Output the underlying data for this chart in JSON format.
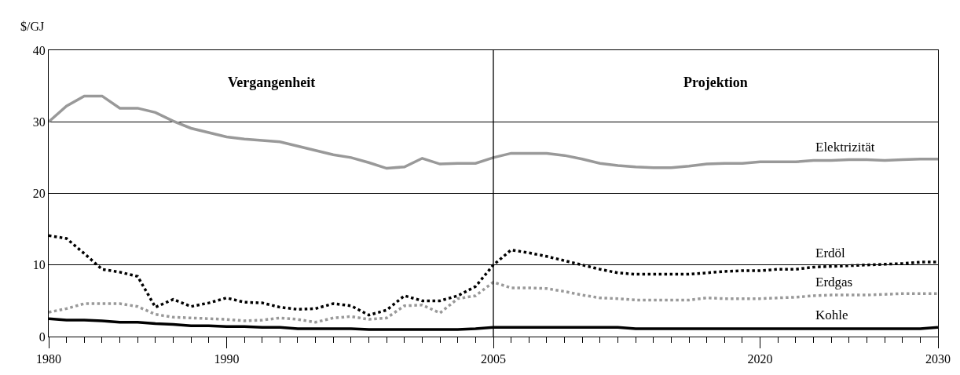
{
  "chart_data": {
    "type": "line",
    "ylabel": "$/GJ",
    "x": [
      1980,
      1981,
      1982,
      1983,
      1984,
      1985,
      1986,
      1987,
      1988,
      1989,
      1990,
      1991,
      1992,
      1993,
      1994,
      1995,
      1996,
      1997,
      1998,
      1999,
      2000,
      2001,
      2002,
      2003,
      2004,
      2005,
      2006,
      2007,
      2008,
      2009,
      2010,
      2011,
      2012,
      2013,
      2014,
      2015,
      2016,
      2017,
      2018,
      2019,
      2020,
      2021,
      2022,
      2023,
      2024,
      2025,
      2026,
      2027,
      2028,
      2029,
      2030
    ],
    "series": [
      {
        "name": "Elektrizität",
        "color": "#999999",
        "line_style": "solid",
        "values": [
          30.0,
          32.2,
          33.6,
          33.6,
          31.9,
          31.9,
          31.3,
          30.1,
          29.1,
          28.5,
          27.9,
          27.6,
          27.4,
          27.2,
          26.6,
          26.0,
          25.4,
          25.0,
          24.3,
          23.5,
          23.7,
          24.9,
          24.1,
          24.2,
          24.2,
          25.0,
          25.6,
          25.6,
          25.6,
          25.3,
          24.8,
          24.2,
          23.9,
          23.7,
          23.6,
          23.6,
          23.8,
          24.1,
          24.2,
          24.2,
          24.4,
          24.4,
          24.4,
          24.6,
          24.6,
          24.7,
          24.7,
          24.6,
          24.7,
          24.8,
          24.8
        ]
      },
      {
        "name": "Erdöl",
        "color": "#000000",
        "line_style": "dotted",
        "values": [
          14.1,
          13.7,
          11.6,
          9.4,
          9.0,
          8.4,
          4.1,
          5.2,
          4.2,
          4.7,
          5.4,
          4.8,
          4.7,
          4.1,
          3.8,
          3.9,
          4.6,
          4.3,
          3.0,
          3.7,
          5.7,
          5.0,
          5.0,
          5.7,
          7.0,
          10.0,
          12.1,
          11.7,
          11.2,
          10.6,
          10.0,
          9.4,
          8.9,
          8.7,
          8.7,
          8.7,
          8.7,
          8.9,
          9.1,
          9.2,
          9.2,
          9.4,
          9.4,
          9.7,
          9.8,
          9.9,
          10.0,
          10.1,
          10.2,
          10.4,
          10.4
        ]
      },
      {
        "name": "Erdgas",
        "color": "#999999",
        "line_style": "dotted",
        "values": [
          3.4,
          3.9,
          4.6,
          4.6,
          4.6,
          4.2,
          3.1,
          2.7,
          2.6,
          2.5,
          2.4,
          2.2,
          2.3,
          2.6,
          2.4,
          2.0,
          2.6,
          2.8,
          2.4,
          2.6,
          4.3,
          4.4,
          3.3,
          5.3,
          5.7,
          7.6,
          6.8,
          6.8,
          6.7,
          6.3,
          5.8,
          5.4,
          5.3,
          5.1,
          5.1,
          5.1,
          5.1,
          5.4,
          5.3,
          5.3,
          5.3,
          5.4,
          5.5,
          5.7,
          5.8,
          5.8,
          5.8,
          5.9,
          6.0,
          6.0,
          6.0
        ]
      },
      {
        "name": "Kohle",
        "color": "#000000",
        "line_style": "solid",
        "values": [
          2.5,
          2.3,
          2.3,
          2.2,
          2.0,
          2.0,
          1.8,
          1.7,
          1.5,
          1.5,
          1.4,
          1.4,
          1.3,
          1.3,
          1.1,
          1.1,
          1.1,
          1.1,
          1.0,
          1.0,
          1.0,
          1.0,
          1.0,
          1.0,
          1.1,
          1.3,
          1.3,
          1.3,
          1.3,
          1.3,
          1.3,
          1.3,
          1.3,
          1.1,
          1.1,
          1.1,
          1.1,
          1.1,
          1.1,
          1.1,
          1.1,
          1.1,
          1.1,
          1.1,
          1.1,
          1.1,
          1.1,
          1.1,
          1.1,
          1.1,
          1.3
        ]
      }
    ],
    "xlim": [
      1980,
      2030
    ],
    "ylim": [
      0,
      40
    ],
    "xticks": [
      1980,
      {
        "value": 1981,
        "label": null
      },
      {
        "value": 1982,
        "label": null
      },
      {
        "value": 1983,
        "label": null
      },
      {
        "value": 1984,
        "label": null
      },
      {
        "value": 1985,
        "label": null
      },
      {
        "value": 1986,
        "label": null
      },
      {
        "value": 1987,
        "label": null
      },
      {
        "value": 1988,
        "label": null
      },
      {
        "value": 1989,
        "label": null
      },
      1990,
      {
        "value": 1991,
        "label": null
      },
      {
        "value": 1992,
        "label": null
      },
      {
        "value": 1993,
        "label": null
      },
      {
        "value": 1994,
        "label": null
      },
      {
        "value": 1995,
        "label": null
      },
      {
        "value": 1996,
        "label": null
      },
      {
        "value": 1997,
        "label": null
      },
      {
        "value": 1998,
        "label": null
      },
      {
        "value": 1999,
        "label": null
      },
      {
        "value": 2000,
        "label": null
      },
      {
        "value": 2001,
        "label": null
      },
      {
        "value": 2002,
        "label": null
      },
      {
        "value": 2003,
        "label": null
      },
      {
        "value": 2004,
        "label": null
      },
      2005,
      {
        "value": 2006,
        "label": null
      },
      {
        "value": 2007,
        "label": null
      },
      {
        "value": 2008,
        "label": null
      },
      {
        "value": 2009,
        "label": null
      },
      {
        "value": 2010,
        "label": null
      },
      {
        "value": 2011,
        "label": null
      },
      {
        "value": 2012,
        "label": null
      },
      {
        "value": 2013,
        "label": null
      },
      {
        "value": 2014,
        "label": null
      },
      {
        "value": 2015,
        "label": null
      },
      {
        "value": 2016,
        "label": null
      },
      {
        "value": 2017,
        "label": null
      },
      {
        "value": 2018,
        "label": null
      },
      {
        "value": 2019,
        "label": null
      },
      2020,
      {
        "value": 2021,
        "label": null
      },
      {
        "value": 2022,
        "label": null
      },
      {
        "value": 2023,
        "label": null
      },
      {
        "value": 2024,
        "label": null
      },
      {
        "value": 2025,
        "label": null
      },
      {
        "value": 2026,
        "label": null
      },
      {
        "value": 2027,
        "label": null
      },
      {
        "value": 2028,
        "label": null
      },
      {
        "value": 2029,
        "label": null
      },
      2030
    ],
    "yticks": [
      0,
      10,
      20,
      30,
      40
    ],
    "grid": "y",
    "legend": false,
    "marker": "none",
    "ref_lines": [
      {
        "axis": "x",
        "value": 2005,
        "color": "#000000"
      }
    ],
    "annotations": [
      "Vergangenheit",
      "Projektion"
    ]
  }
}
